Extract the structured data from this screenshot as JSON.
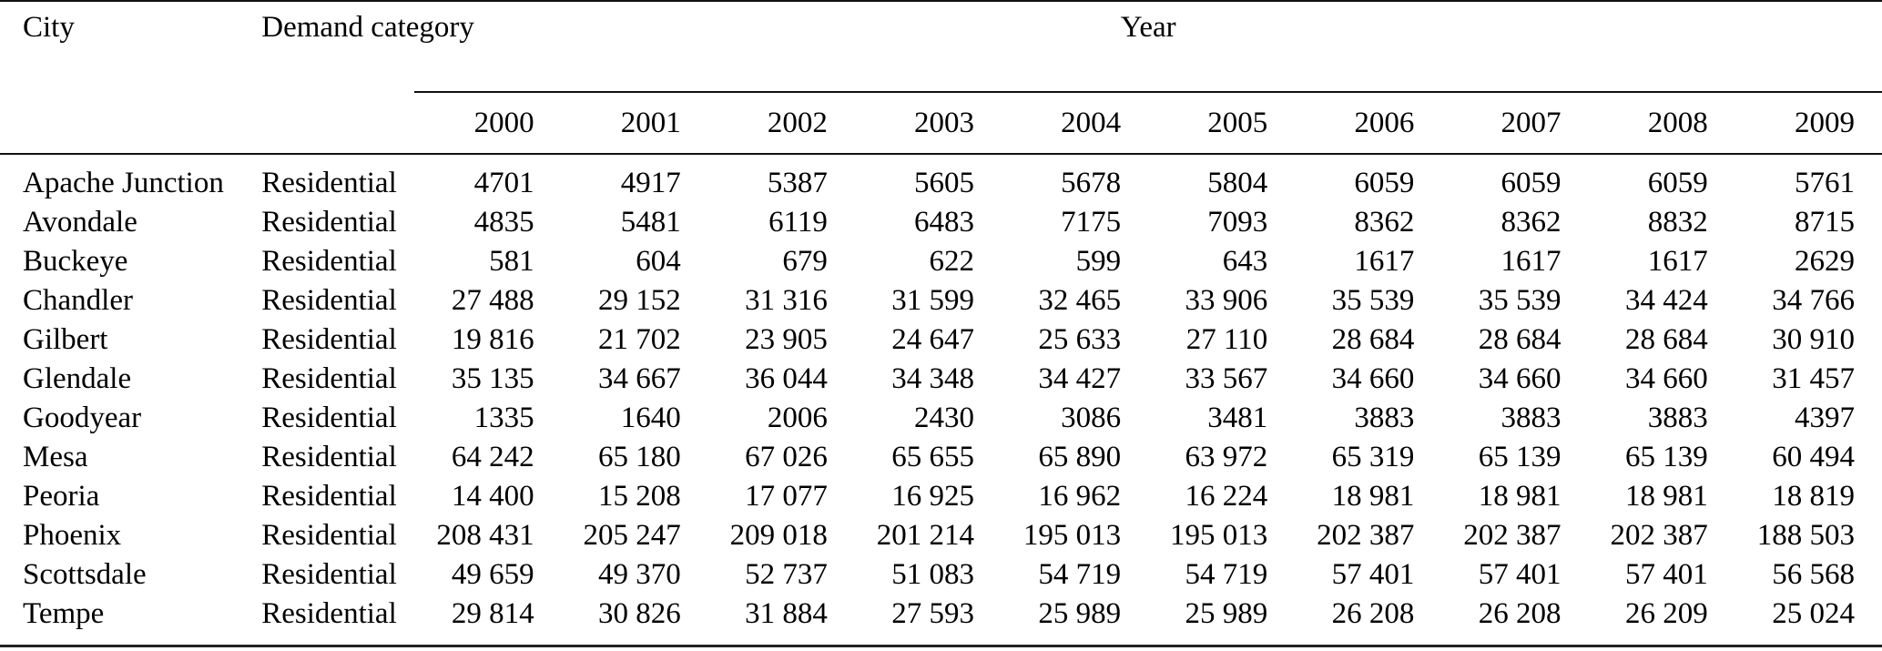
{
  "table": {
    "columns": {
      "city_label": "City",
      "category_label": "Demand category",
      "year_group_label": "Year",
      "years": [
        "2000",
        "2001",
        "2002",
        "2003",
        "2004",
        "2005",
        "2006",
        "2007",
        "2008",
        "2009"
      ]
    },
    "rows": [
      {
        "city": "Apache Junction",
        "category": "Residential",
        "values": [
          "4701",
          "4917",
          "5387",
          "5605",
          "5678",
          "5804",
          "6059",
          "6059",
          "6059",
          "5761"
        ]
      },
      {
        "city": "Avondale",
        "category": "Residential",
        "values": [
          "4835",
          "5481",
          "6119",
          "6483",
          "7175",
          "7093",
          "8362",
          "8362",
          "8832",
          "8715"
        ]
      },
      {
        "city": "Buckeye",
        "category": "Residential",
        "values": [
          "581",
          "604",
          "679",
          "622",
          "599",
          "643",
          "1617",
          "1617",
          "1617",
          "2629"
        ]
      },
      {
        "city": "Chandler",
        "category": "Residential",
        "values": [
          "27 488",
          "29 152",
          "31 316",
          "31 599",
          "32 465",
          "33 906",
          "35 539",
          "35 539",
          "34 424",
          "34 766"
        ]
      },
      {
        "city": "Gilbert",
        "category": "Residential",
        "values": [
          "19 816",
          "21 702",
          "23 905",
          "24 647",
          "25 633",
          "27 110",
          "28 684",
          "28 684",
          "28 684",
          "30 910"
        ]
      },
      {
        "city": "Glendale",
        "category": "Residential",
        "values": [
          "35 135",
          "34 667",
          "36 044",
          "34 348",
          "34 427",
          "33 567",
          "34 660",
          "34 660",
          "34 660",
          "31 457"
        ]
      },
      {
        "city": "Goodyear",
        "category": "Residential",
        "values": [
          "1335",
          "1640",
          "2006",
          "2430",
          "3086",
          "3481",
          "3883",
          "3883",
          "3883",
          "4397"
        ]
      },
      {
        "city": "Mesa",
        "category": "Residential",
        "values": [
          "64 242",
          "65 180",
          "67 026",
          "65 655",
          "65 890",
          "63 972",
          "65 319",
          "65 139",
          "65 139",
          "60 494"
        ]
      },
      {
        "city": "Peoria",
        "category": "Residential",
        "values": [
          "14 400",
          "15 208",
          "17 077",
          "16 925",
          "16 962",
          "16 224",
          "18 981",
          "18 981",
          "18 981",
          "18 819"
        ]
      },
      {
        "city": "Phoenix",
        "category": "Residential",
        "values": [
          "208 431",
          "205 247",
          "209 018",
          "201 214",
          "195 013",
          "195 013",
          "202 387",
          "202 387",
          "202 387",
          "188 503"
        ]
      },
      {
        "city": "Scottsdale",
        "category": "Residential",
        "values": [
          "49 659",
          "49 370",
          "52 737",
          "51 083",
          "54 719",
          "54 719",
          "57 401",
          "57 401",
          "57 401",
          "56 568"
        ]
      },
      {
        "city": "Tempe",
        "category": "Residential",
        "values": [
          "29 814",
          "30 826",
          "31 884",
          "27 593",
          "25 989",
          "25 989",
          "26 208",
          "26 208",
          "26 209",
          "25 024"
        ]
      }
    ]
  }
}
